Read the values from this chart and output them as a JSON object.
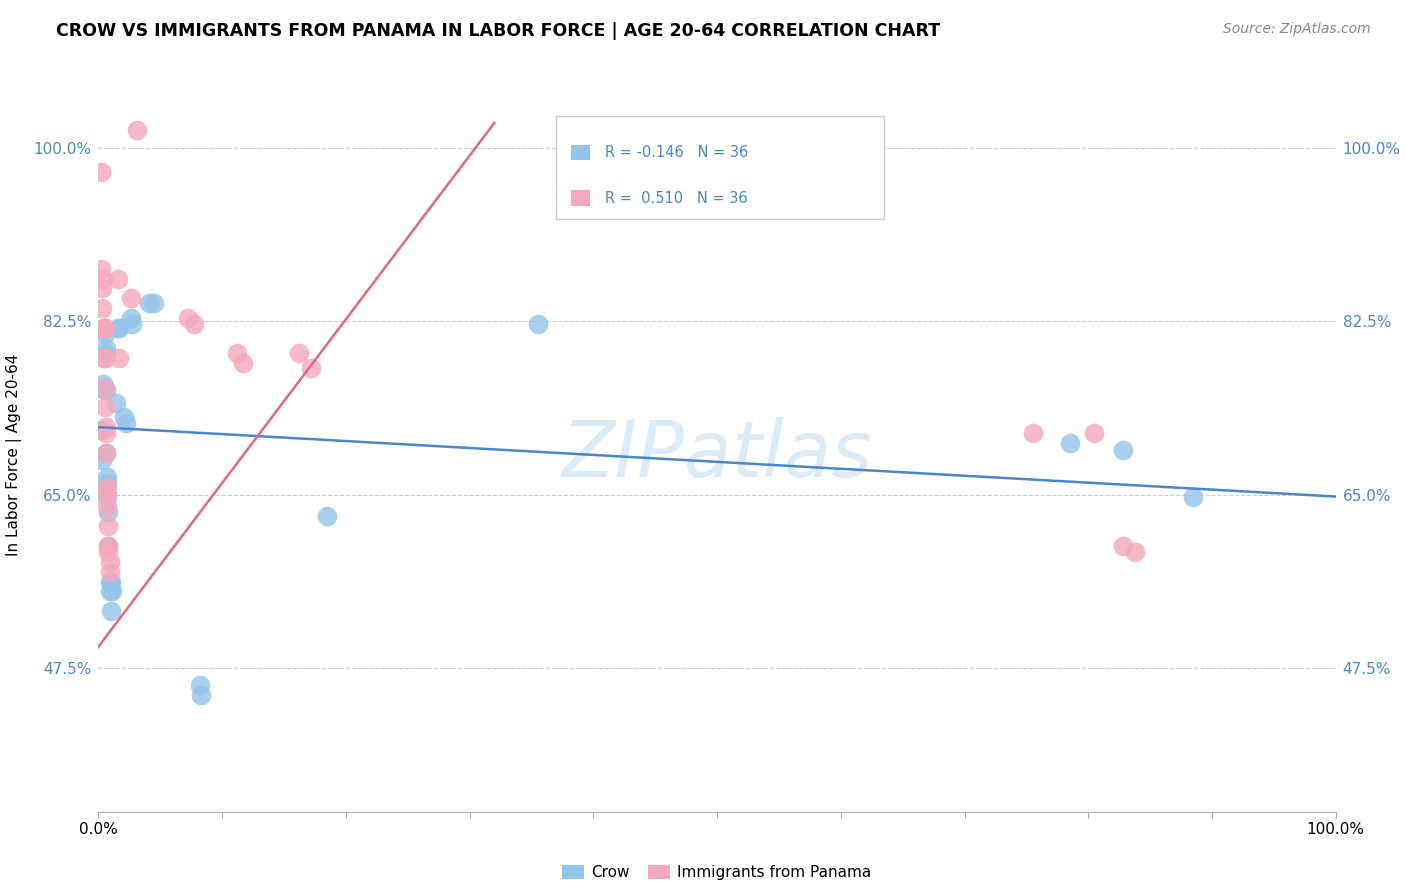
{
  "title": "CROW VS IMMIGRANTS FROM PANAMA IN LABOR FORCE | AGE 20-64 CORRELATION CHART",
  "source": "Source: ZipAtlas.com",
  "ylabel": "In Labor Force | Age 20-64",
  "xlim": [
    0.0,
    1.0
  ],
  "ylim": [
    0.33,
    1.05
  ],
  "yticks": [
    0.475,
    0.65,
    0.825,
    1.0
  ],
  "ytick_labels": [
    "47.5%",
    "65.0%",
    "82.5%",
    "100.0%"
  ],
  "xticks": [
    0.0,
    0.1,
    0.2,
    0.3,
    0.4,
    0.5,
    0.6,
    0.7,
    0.8,
    0.9,
    1.0
  ],
  "xtick_labels": [
    "0.0%",
    "",
    "",
    "",
    "",
    "",
    "",
    "",
    "",
    "",
    "100.0%"
  ],
  "watermark": "ZIPatlas",
  "crow_color": "#93c4ea",
  "panama_color": "#f4a8bb",
  "crow_line_color": "#4a86c8",
  "panama_line_color": "#e06880",
  "crow_scatter": [
    [
      0.002,
      0.715
    ],
    [
      0.003,
      0.685
    ],
    [
      0.004,
      0.762
    ],
    [
      0.004,
      0.757
    ],
    [
      0.005,
      0.818
    ],
    [
      0.005,
      0.812
    ],
    [
      0.006,
      0.798
    ],
    [
      0.006,
      0.793
    ],
    [
      0.006,
      0.755
    ],
    [
      0.006,
      0.692
    ],
    [
      0.007,
      0.662
    ],
    [
      0.007,
      0.648
    ],
    [
      0.007,
      0.668
    ],
    [
      0.008,
      0.632
    ],
    [
      0.008,
      0.598
    ],
    [
      0.009,
      0.562
    ],
    [
      0.009,
      0.553
    ],
    [
      0.01,
      0.533
    ],
    [
      0.01,
      0.562
    ],
    [
      0.011,
      0.553
    ],
    [
      0.014,
      0.742
    ],
    [
      0.016,
      0.818
    ],
    [
      0.017,
      0.818
    ],
    [
      0.021,
      0.728
    ],
    [
      0.022,
      0.722
    ],
    [
      0.026,
      0.828
    ],
    [
      0.027,
      0.822
    ],
    [
      0.041,
      0.843
    ],
    [
      0.045,
      0.843
    ],
    [
      0.082,
      0.458
    ],
    [
      0.083,
      0.448
    ],
    [
      0.185,
      0.628
    ],
    [
      0.355,
      0.822
    ],
    [
      0.785,
      0.702
    ],
    [
      0.828,
      0.695
    ],
    [
      0.885,
      0.648
    ]
  ],
  "panama_scatter": [
    [
      0.002,
      0.975
    ],
    [
      0.002,
      0.878
    ],
    [
      0.003,
      0.858
    ],
    [
      0.003,
      0.838
    ],
    [
      0.004,
      0.868
    ],
    [
      0.004,
      0.818
    ],
    [
      0.004,
      0.788
    ],
    [
      0.005,
      0.818
    ],
    [
      0.005,
      0.788
    ],
    [
      0.005,
      0.758
    ],
    [
      0.005,
      0.738
    ],
    [
      0.006,
      0.718
    ],
    [
      0.006,
      0.712
    ],
    [
      0.006,
      0.692
    ],
    [
      0.007,
      0.658
    ],
    [
      0.007,
      0.652
    ],
    [
      0.007,
      0.638
    ],
    [
      0.008,
      0.618
    ],
    [
      0.008,
      0.598
    ],
    [
      0.008,
      0.592
    ],
    [
      0.009,
      0.582
    ],
    [
      0.009,
      0.572
    ],
    [
      0.016,
      0.868
    ],
    [
      0.017,
      0.788
    ],
    [
      0.026,
      0.848
    ],
    [
      0.031,
      1.018
    ],
    [
      0.072,
      0.828
    ],
    [
      0.077,
      0.822
    ],
    [
      0.112,
      0.793
    ],
    [
      0.117,
      0.783
    ],
    [
      0.162,
      0.793
    ],
    [
      0.172,
      0.778
    ],
    [
      0.755,
      0.712
    ],
    [
      0.805,
      0.712
    ],
    [
      0.828,
      0.598
    ],
    [
      0.838,
      0.592
    ]
  ],
  "crow_trend_x": [
    0.0,
    1.0
  ],
  "crow_trend_y": [
    0.718,
    0.648
  ],
  "panama_trend_x": [
    -0.01,
    0.32
  ],
  "panama_trend_y": [
    0.48,
    1.025
  ]
}
